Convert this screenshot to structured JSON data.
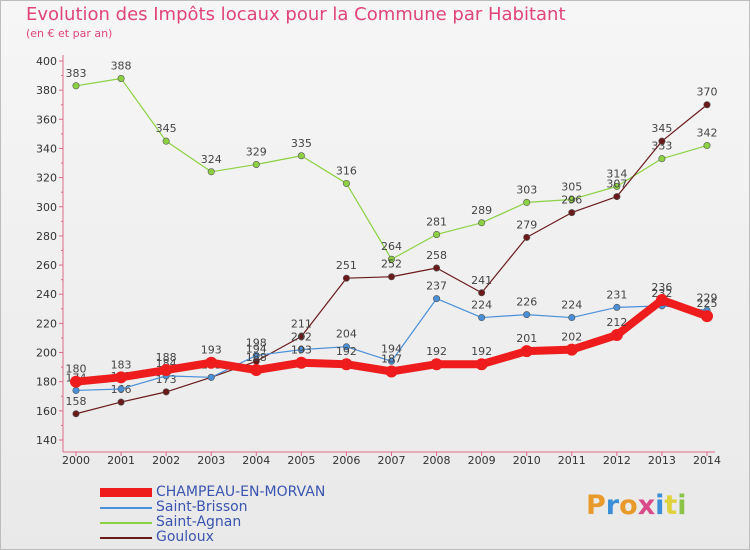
{
  "header": {
    "title": "Evolution des Impôts locaux pour la Commune par Habitant",
    "subtitle": "(en € et par an)"
  },
  "logo": {
    "text": "Proxiti",
    "colors": [
      "#e89a2b",
      "#3c8fd6",
      "#e89a2b",
      "#d94a8a",
      "#3c8fd6",
      "#e0d23a",
      "#8bc34a"
    ]
  },
  "chart_data": {
    "type": "line",
    "title": "Evolution des Impôts locaux pour la Commune par Habitant",
    "subtitle": "(en € et par an)",
    "x": [
      "2000",
      "2001",
      "2002",
      "2003",
      "2004",
      "2005",
      "2006",
      "2007",
      "2008",
      "2009",
      "2010",
      "2011",
      "2012",
      "2013",
      "2014"
    ],
    "ylim": [
      140,
      400
    ],
    "yticks": [
      "140",
      "160",
      "180",
      "200",
      "220",
      "240",
      "260",
      "280",
      "300",
      "320",
      "340",
      "360",
      "380",
      "400"
    ],
    "grid": false,
    "legend_position": "bottom-left",
    "series": [
      {
        "name": "CHAMPEAU-EN-MORVAN",
        "color": "#ee1c1c",
        "values": [
          180,
          183,
          188,
          193,
          188,
          193,
          192,
          187,
          192,
          192,
          201,
          202,
          212,
          236,
          225
        ],
        "labels": [
          "180",
          "183",
          "188",
          "193",
          "188",
          "193",
          "192",
          "187",
          "192",
          "192",
          "201",
          "202",
          "212",
          "236",
          "225"
        ]
      },
      {
        "name": "Saint-Brisson",
        "color": "#4a90d9",
        "values": [
          174,
          175,
          184,
          183,
          198,
          202,
          204,
          194,
          237,
          224,
          226,
          224,
          231,
          232,
          229
        ],
        "labels": [
          "174",
          "175",
          "184",
          "183",
          "198",
          "202",
          "204",
          "194",
          "237",
          "224",
          "226",
          "224",
          "231",
          "232",
          "229"
        ]
      },
      {
        "name": "Saint-Agnan",
        "color": "#8bd142",
        "values": [
          383,
          388,
          345,
          324,
          329,
          335,
          316,
          264,
          281,
          289,
          303,
          305,
          314,
          333,
          342
        ],
        "labels": [
          "383",
          "388",
          "345",
          "324",
          "329",
          "335",
          "316",
          "264",
          "281",
          "289",
          "303",
          "305",
          "314",
          "333",
          "342"
        ]
      },
      {
        "name": "Gouloux",
        "color": "#6b1a1a",
        "values": [
          158,
          166,
          173,
          183,
          194,
          211,
          251,
          252,
          258,
          241,
          279,
          296,
          307,
          345,
          370
        ],
        "labels": [
          "158",
          "166",
          "173",
          "183",
          "194",
          "211",
          "251",
          "252",
          "258",
          "241",
          "279",
          "296",
          "307",
          "345",
          "370"
        ]
      }
    ]
  }
}
